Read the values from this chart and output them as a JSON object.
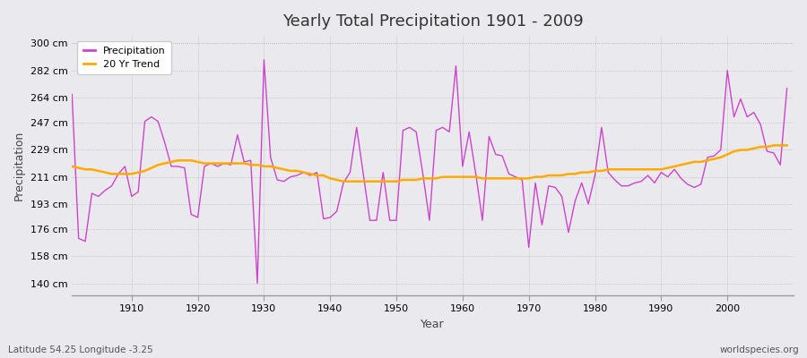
{
  "title": "Yearly Total Precipitation 1901 - 2009",
  "xlabel": "Year",
  "ylabel": "Precipitation",
  "lat_lon_label": "Latitude 54.25 Longitude -3.25",
  "source_label": "worldspecies.org",
  "bg_color": "#eaeaee",
  "line_color": "#cc44cc",
  "trend_color": "#ffaa00",
  "ytick_labels": [
    "140 cm",
    "158 cm",
    "176 cm",
    "193 cm",
    "211 cm",
    "229 cm",
    "247 cm",
    "264 cm",
    "282 cm",
    "300 cm"
  ],
  "ytick_values": [
    140,
    158,
    176,
    193,
    211,
    229,
    247,
    264,
    282,
    300
  ],
  "ylim": [
    132,
    305
  ],
  "xlim": [
    1901,
    2010
  ],
  "xtick_values": [
    1910,
    1920,
    1930,
    1940,
    1950,
    1960,
    1970,
    1980,
    1990,
    2000
  ],
  "years": [
    1901,
    1902,
    1903,
    1904,
    1905,
    1906,
    1907,
    1908,
    1909,
    1910,
    1911,
    1912,
    1913,
    1914,
    1915,
    1916,
    1917,
    1918,
    1919,
    1920,
    1921,
    1922,
    1923,
    1924,
    1925,
    1926,
    1927,
    1928,
    1929,
    1930,
    1931,
    1932,
    1933,
    1934,
    1935,
    1936,
    1937,
    1938,
    1939,
    1940,
    1941,
    1942,
    1943,
    1944,
    1945,
    1946,
    1947,
    1948,
    1949,
    1950,
    1951,
    1952,
    1953,
    1954,
    1955,
    1956,
    1957,
    1958,
    1959,
    1960,
    1961,
    1962,
    1963,
    1964,
    1965,
    1966,
    1967,
    1968,
    1969,
    1970,
    1971,
    1972,
    1973,
    1974,
    1975,
    1976,
    1977,
    1978,
    1979,
    1980,
    1981,
    1982,
    1983,
    1984,
    1985,
    1986,
    1987,
    1988,
    1989,
    1990,
    1991,
    1992,
    1993,
    1994,
    1995,
    1996,
    1997,
    1998,
    1999,
    2000,
    2001,
    2002,
    2003,
    2004,
    2005,
    2006,
    2007,
    2008,
    2009
  ],
  "precipitation": [
    266,
    170,
    168,
    200,
    198,
    202,
    205,
    213,
    218,
    198,
    201,
    248,
    251,
    248,
    234,
    218,
    218,
    217,
    186,
    184,
    218,
    220,
    218,
    220,
    219,
    239,
    221,
    222,
    140,
    289,
    224,
    209,
    208,
    211,
    212,
    214,
    212,
    214,
    183,
    184,
    188,
    207,
    214,
    244,
    213,
    182,
    182,
    214,
    182,
    182,
    242,
    244,
    241,
    213,
    182,
    242,
    244,
    241,
    285,
    218,
    241,
    213,
    182,
    238,
    226,
    225,
    213,
    211,
    209,
    164,
    207,
    179,
    205,
    204,
    198,
    174,
    195,
    207,
    193,
    212,
    244,
    214,
    209,
    205,
    205,
    207,
    208,
    212,
    207,
    214,
    211,
    216,
    210,
    206,
    204,
    206,
    224,
    225,
    229,
    282,
    251,
    263,
    251,
    254,
    246,
    228,
    227,
    219,
    270
  ],
  "trend": [
    218,
    217,
    216,
    216,
    215,
    214,
    213,
    213,
    213,
    213,
    214,
    215,
    217,
    219,
    220,
    221,
    222,
    222,
    222,
    221,
    220,
    220,
    220,
    220,
    220,
    220,
    220,
    219,
    219,
    218,
    218,
    217,
    216,
    215,
    215,
    214,
    213,
    212,
    212,
    210,
    209,
    208,
    208,
    208,
    208,
    208,
    208,
    208,
    208,
    208,
    209,
    209,
    209,
    210,
    210,
    210,
    211,
    211,
    211,
    211,
    211,
    211,
    210,
    210,
    210,
    210,
    210,
    210,
    210,
    210,
    211,
    211,
    212,
    212,
    212,
    213,
    213,
    214,
    214,
    215,
    215,
    216,
    216,
    216,
    216,
    216,
    216,
    216,
    216,
    216,
    217,
    218,
    219,
    220,
    221,
    221,
    222,
    223,
    224,
    226,
    228,
    229,
    229,
    230,
    231,
    231,
    232,
    232,
    232
  ]
}
